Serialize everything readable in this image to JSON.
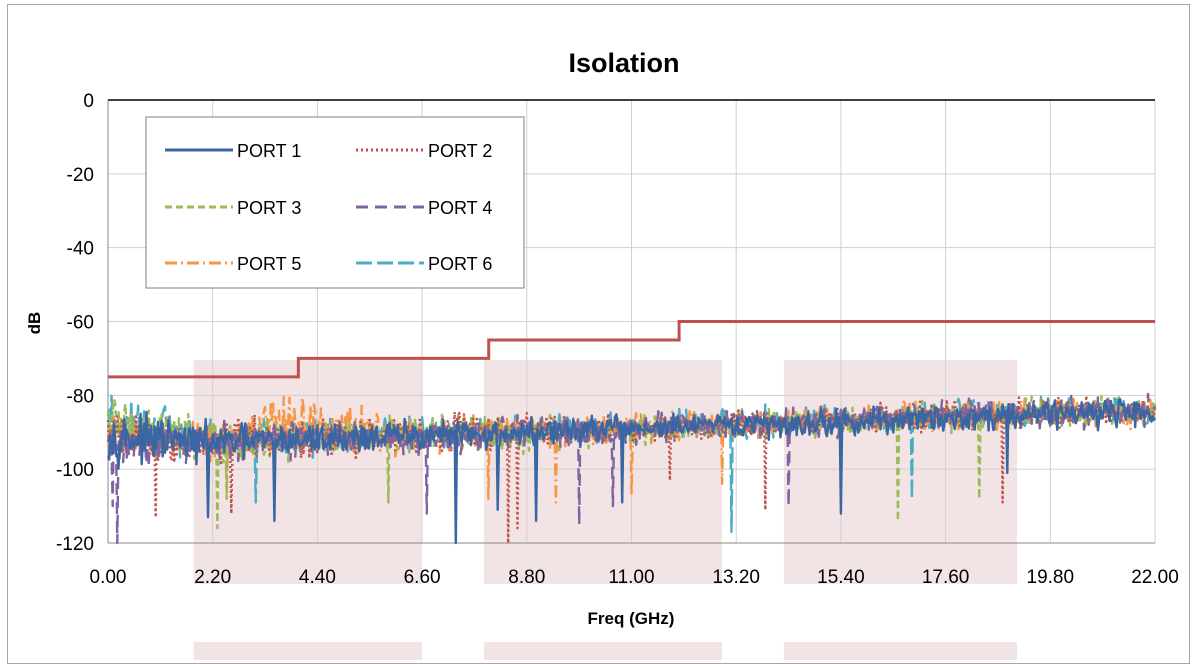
{
  "chart_data": {
    "type": "line",
    "title": "Isolation",
    "xlabel": "Freq (GHz)",
    "ylabel": "dB",
    "xlim": [
      0,
      22
    ],
    "ylim": [
      -120,
      0
    ],
    "x_ticks": [
      "0.00",
      "2.20",
      "4.40",
      "6.60",
      "8.80",
      "11.00",
      "13.20",
      "15.40",
      "17.60",
      "19.80",
      "22.00"
    ],
    "y_ticks": [
      "0",
      "-20",
      "-40",
      "-60",
      "-80",
      "-100",
      "-120"
    ],
    "grid": true,
    "legend_position": "top-left",
    "highlight_bands_ghz": [
      [
        1.8,
        6.6
      ],
      [
        7.9,
        12.9
      ],
      [
        14.2,
        19.1
      ]
    ],
    "limit_line": {
      "color": "#c0504d",
      "steps": [
        {
          "x_start": 0.0,
          "x_end": 4.0,
          "y": -75
        },
        {
          "x_start": 4.0,
          "x_end": 8.0,
          "y": -70
        },
        {
          "x_start": 8.0,
          "x_end": 12.0,
          "y": -65
        },
        {
          "x_start": 12.0,
          "x_end": 22.0,
          "y": -60
        }
      ]
    },
    "series": [
      {
        "name": "PORT 1",
        "color": "#3a67a3",
        "dash": "solid",
        "noise_envelope": {
          "x": [
            0,
            2,
            4,
            6,
            8,
            10,
            12,
            14,
            16,
            18,
            20,
            22
          ],
          "y_low": [
            -100,
            -100,
            -98,
            -97,
            -96,
            -95,
            -93,
            -93,
            -92,
            -91,
            -90,
            -90
          ],
          "y_high": [
            -82,
            -86,
            -86,
            -85,
            -85,
            -84,
            -84,
            -83,
            -82,
            -81,
            -79,
            -79
          ]
        },
        "dips": [
          {
            "x": 2.1,
            "y": -113
          },
          {
            "x": 3.5,
            "y": -114
          },
          {
            "x": 7.3,
            "y": -120
          },
          {
            "x": 8.2,
            "y": -111
          },
          {
            "x": 9.0,
            "y": -114
          },
          {
            "x": 10.8,
            "y": -109
          },
          {
            "x": 15.4,
            "y": -112
          },
          {
            "x": 18.9,
            "y": -101
          }
        ]
      },
      {
        "name": "PORT 2",
        "color": "#c0504d",
        "dash": "dot",
        "noise_envelope": {
          "x": [
            0,
            2,
            4,
            6,
            8,
            10,
            12,
            14,
            16,
            18,
            20,
            22
          ],
          "y_low": [
            -100,
            -101,
            -99,
            -97,
            -97,
            -95,
            -94,
            -93,
            -92,
            -91,
            -90,
            -90
          ],
          "y_high": [
            -82,
            -84,
            -85,
            -83,
            -82,
            -84,
            -84,
            -82,
            -81,
            -80,
            -79,
            -79
          ]
        },
        "dips": [
          {
            "x": 1.0,
            "y": -113
          },
          {
            "x": 2.6,
            "y": -112
          },
          {
            "x": 8.4,
            "y": -120
          },
          {
            "x": 8.6,
            "y": -116
          },
          {
            "x": 11.8,
            "y": -103
          },
          {
            "x": 13.8,
            "y": -111
          },
          {
            "x": 18.8,
            "y": -109
          }
        ]
      },
      {
        "name": "PORT 3",
        "color": "#9bbb59",
        "dash": "dash",
        "noise_envelope": {
          "x": [
            0,
            2,
            4,
            6,
            8,
            10,
            12,
            14,
            16,
            18,
            20,
            22
          ],
          "y_low": [
            -99,
            -101,
            -99,
            -98,
            -97,
            -96,
            -94,
            -93,
            -92,
            -91,
            -90,
            -90
          ],
          "y_high": [
            -75,
            -84,
            -85,
            -84,
            -84,
            -84,
            -83,
            -82,
            -81,
            -80,
            -78,
            -78
          ]
        },
        "dips": [
          {
            "x": 2.3,
            "y": -116
          },
          {
            "x": 2.5,
            "y": -108
          },
          {
            "x": 5.9,
            "y": -109
          },
          {
            "x": 16.6,
            "y": -114
          },
          {
            "x": 18.3,
            "y": -108
          }
        ]
      },
      {
        "name": "PORT 4",
        "color": "#8064a2",
        "dash": "longdash",
        "noise_envelope": {
          "x": [
            0,
            2,
            4,
            6,
            8,
            10,
            12,
            14,
            16,
            18,
            20,
            22
          ],
          "y_low": [
            -101,
            -101,
            -99,
            -98,
            -97,
            -96,
            -94,
            -93,
            -92,
            -91,
            -90,
            -90
          ],
          "y_high": [
            -84,
            -85,
            -85,
            -85,
            -84,
            -84,
            -83,
            -82,
            -81,
            -80,
            -79,
            -79
          ]
        },
        "dips": [
          {
            "x": 0.1,
            "y": -110
          },
          {
            "x": 0.2,
            "y": -120
          },
          {
            "x": 6.7,
            "y": -112
          },
          {
            "x": 9.9,
            "y": -115
          },
          {
            "x": 10.6,
            "y": -110
          },
          {
            "x": 14.3,
            "y": -110
          }
        ]
      },
      {
        "name": "PORT 5",
        "color": "#f79646",
        "dash": "dashdot",
        "noise_envelope": {
          "x": [
            0,
            2,
            4,
            6,
            8,
            10,
            12,
            14,
            16,
            18,
            20,
            22
          ],
          "y_low": [
            -98,
            -100,
            -99,
            -98,
            -96,
            -95,
            -94,
            -93,
            -92,
            -91,
            -90,
            -90
          ],
          "y_high": [
            -83,
            -84,
            -77,
            -84,
            -84,
            -84,
            -83,
            -82,
            -81,
            -80,
            -79,
            -79
          ]
        },
        "dips": [
          {
            "x": 2.5,
            "y": -106
          },
          {
            "x": 8.0,
            "y": -108
          },
          {
            "x": 9.4,
            "y": -109
          },
          {
            "x": 11.0,
            "y": -107
          },
          {
            "x": 12.9,
            "y": -104
          }
        ]
      },
      {
        "name": "PORT 6",
        "color": "#4bacc6",
        "dash": "widedash",
        "noise_envelope": {
          "x": [
            0,
            2,
            4,
            6,
            8,
            10,
            12,
            14,
            16,
            18,
            20,
            22
          ],
          "y_low": [
            -99,
            -100,
            -99,
            -97,
            -96,
            -95,
            -94,
            -93,
            -92,
            -91,
            -90,
            -90
          ],
          "y_high": [
            -76,
            -84,
            -84,
            -84,
            -84,
            -84,
            -83,
            -82,
            -81,
            -80,
            -79,
            -79
          ]
        },
        "dips": [
          {
            "x": 3.1,
            "y": -109
          },
          {
            "x": 13.1,
            "y": -117
          },
          {
            "x": 16.9,
            "y": -108
          }
        ]
      }
    ]
  }
}
